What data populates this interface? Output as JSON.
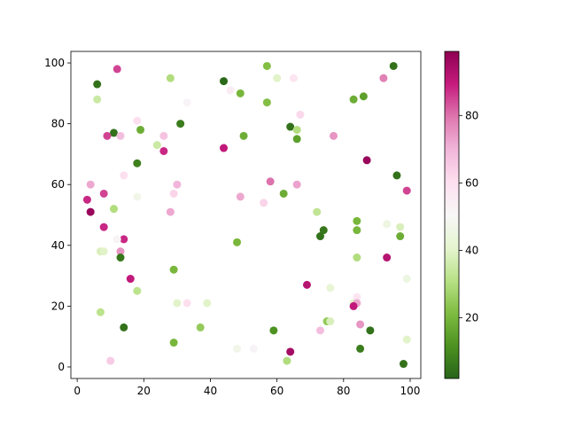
{
  "chart_data": {
    "type": "scatter",
    "x": [
      12,
      6,
      28,
      33,
      44,
      46,
      49,
      57,
      60,
      65,
      57,
      6,
      67,
      64,
      66,
      66,
      77,
      83,
      86,
      92,
      95,
      87,
      96,
      99,
      11,
      9,
      13,
      19,
      18,
      24,
      26,
      26,
      31,
      50,
      44,
      18,
      14,
      4,
      3,
      8,
      4,
      18,
      11,
      30,
      29,
      28,
      49,
      58,
      56,
      62,
      66,
      72,
      73,
      74,
      84,
      84,
      93,
      97,
      97,
      8,
      7,
      8,
      14,
      12,
      13,
      13,
      48,
      84,
      93,
      16,
      29,
      69,
      76,
      99,
      84,
      83,
      84,
      83,
      30,
      33,
      39,
      7,
      18,
      14,
      37,
      59,
      73,
      75,
      76,
      85,
      88,
      10,
      29,
      48,
      53,
      63,
      64,
      85,
      99,
      98
    ],
    "y": [
      98,
      93,
      95,
      87,
      94,
      91,
      90,
      99,
      95,
      95,
      87,
      88,
      83,
      79,
      78,
      75,
      76,
      88,
      89,
      95,
      99,
      68,
      63,
      58,
      77,
      76,
      76,
      78,
      81,
      73,
      76,
      71,
      80,
      76,
      72,
      67,
      63,
      60,
      55,
      57,
      51,
      56,
      52,
      60,
      57,
      51,
      56,
      61,
      54,
      57,
      60,
      51,
      43,
      45,
      48,
      45,
      47,
      46,
      43,
      46,
      38,
      38,
      42,
      42,
      38,
      36,
      41,
      36,
      36,
      29,
      32,
      27,
      26,
      29,
      23,
      21,
      21,
      20,
      21,
      21,
      21,
      18,
      25,
      13,
      13,
      12,
      12,
      15,
      15,
      14,
      12,
      2,
      8,
      6,
      6,
      2,
      5,
      6,
      9,
      1
    ],
    "c": [
      85,
      5,
      30,
      52,
      3,
      55,
      20,
      22,
      40,
      58,
      22,
      35,
      62,
      5,
      30,
      15,
      75,
      18,
      15,
      78,
      5,
      97,
      5,
      85,
      5,
      85,
      68,
      18,
      60,
      35,
      67,
      88,
      7,
      18,
      90,
      8,
      60,
      72,
      88,
      85,
      97,
      47,
      30,
      70,
      63,
      72,
      72,
      80,
      63,
      18,
      73,
      33,
      5,
      6,
      20,
      20,
      45,
      38,
      18,
      88,
      38,
      40,
      88,
      52,
      75,
      6,
      20,
      30,
      92,
      90,
      20,
      92,
      42,
      45,
      58,
      40,
      72,
      90,
      40,
      60,
      40,
      32,
      32,
      5,
      25,
      12,
      68,
      25,
      38,
      75,
      5,
      65,
      20,
      47,
      52,
      30,
      95,
      7,
      40,
      5
    ],
    "colormap": "PiYG_r",
    "clim": [
      2,
      99
    ],
    "cticks": [
      20,
      40,
      60,
      80
    ],
    "xlim": [
      -1.9,
      103.2
    ],
    "ylim": [
      -3.8,
      103.8
    ],
    "xticks": [
      0,
      20,
      40,
      60,
      80,
      100
    ],
    "yticks": [
      0,
      20,
      40,
      60,
      80,
      100
    ]
  }
}
